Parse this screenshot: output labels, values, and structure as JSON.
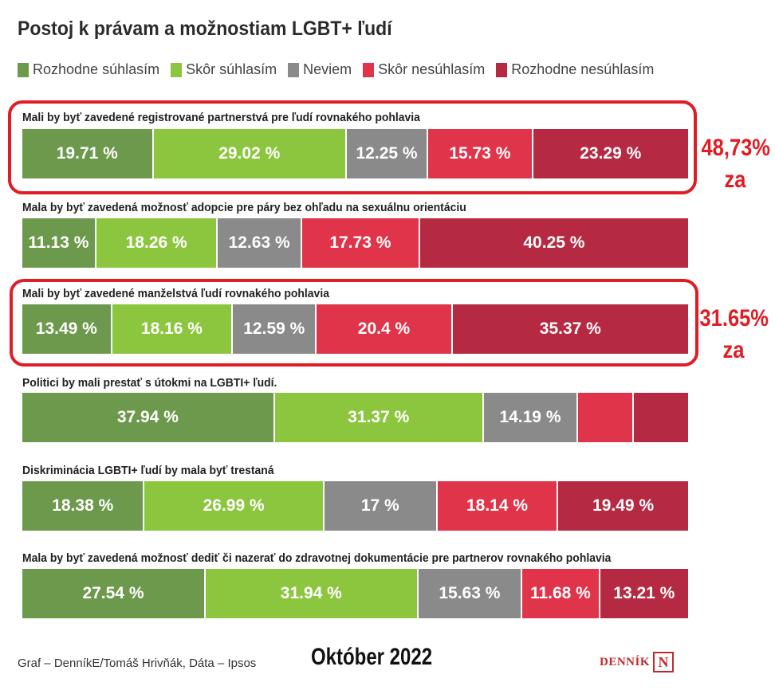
{
  "title": "Postoj k právam a možnostiam LGBT+ ľudí",
  "colors": [
    "#6c994c",
    "#8cc63f",
    "#8a8a8a",
    "#e0344a",
    "#b52a42"
  ],
  "chart_data": {
    "type": "bar",
    "subtype": "stacked-horizontal-100",
    "title": "Postoj k právam a možnostiam LGBT+ ľudí",
    "legend_position": "top-left",
    "series_names": [
      "Rozhodne súhlasím",
      "Skôr súhlasím",
      "Neviem",
      "Skôr nesúhlasím",
      "Rozhodne nesúhlasím"
    ],
    "rows": [
      {
        "question": "Mali by byť zavedené registrované partnerstvá pre ľudí rovnakého pohlavia",
        "values": [
          19.71,
          29.02,
          12.25,
          15.73,
          23.29
        ],
        "labels": [
          "19.71 %",
          "29.02 %",
          "12.25 %",
          "15.73 %",
          "23.29 %"
        ]
      },
      {
        "question": "Mala by byť zavedená možnosť adopcie pre páry bez ohľadu na sexuálnu orientáciu",
        "values": [
          11.13,
          18.26,
          12.63,
          17.73,
          40.25
        ],
        "labels": [
          "11.13 %",
          "18.26 %",
          "12.63 %",
          "17.73 %",
          "40.25 %"
        ]
      },
      {
        "question": "Mali by byť zavedené manželstvá ľudí rovnakého pohlavia",
        "values": [
          13.49,
          18.16,
          12.59,
          20.4,
          35.37
        ],
        "labels": [
          "13.49 %",
          "18.16 %",
          "12.59 %",
          "20.4 %",
          "35.37 %"
        ]
      },
      {
        "question": "Politici by mali prestať s útokmi na LGBTI+ ľudí.",
        "values": [
          37.94,
          31.37,
          14.19,
          8.3,
          8.2
        ],
        "labels": [
          "37.94 %",
          "31.37 %",
          "14.19 %",
          "",
          ""
        ]
      },
      {
        "question": "Diskriminácia LGBTI+ ľudí by mala byť trestaná",
        "values": [
          18.38,
          26.99,
          17,
          18.14,
          19.49
        ],
        "labels": [
          "18.38 %",
          "26.99 %",
          "17 %",
          "18.14 %",
          "19.49 %"
        ]
      },
      {
        "question": "Mala by byť zavedená možnosť dediť či nazerať do zdravotnej dokumentácie pre partnerov rovnakého pohlavia",
        "values": [
          27.54,
          31.94,
          15.63,
          11.68,
          13.21
        ],
        "labels": [
          "27.54 %",
          "31.94 %",
          "15.63 %",
          "11.68 %",
          "13.21 %"
        ]
      }
    ]
  },
  "annotations": [
    {
      "value": "48,73%",
      "word": "za"
    },
    {
      "value": "31.65%",
      "word": "za"
    }
  ],
  "footer": {
    "credit": "Graf – DenníkE/Tomáš Hrivňák, Dáta – Ipsos",
    "date": "Október 2022",
    "logo": "DENNÍK",
    "logo_letter": "N"
  }
}
